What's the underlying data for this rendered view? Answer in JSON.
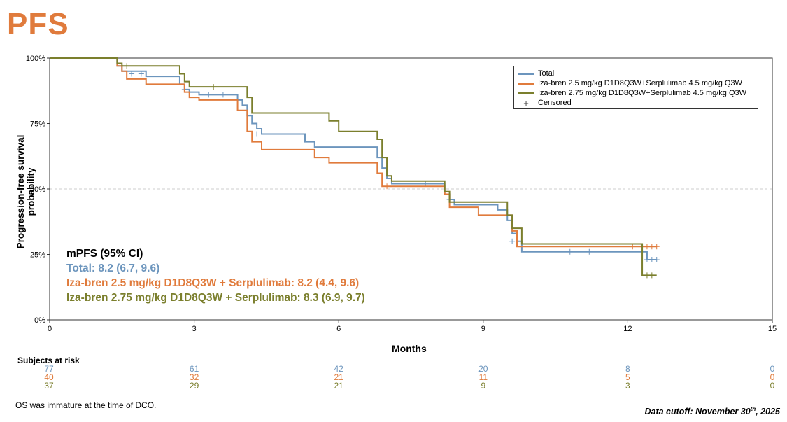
{
  "header": {
    "title": "PFS"
  },
  "chart_data": {
    "type": "line",
    "step": true,
    "xlabel": "Months",
    "ylabel": "Progression-free survival probability",
    "xlim": [
      0,
      15
    ],
    "ylim": [
      0,
      100
    ],
    "x_ticks": [
      0,
      3,
      6,
      9,
      12,
      15
    ],
    "y_ticks": [
      0,
      25,
      50,
      75,
      100
    ],
    "y_tick_labels": [
      "0%",
      "25%",
      "50%",
      "75%",
      "100%"
    ],
    "reference_line_y": 50,
    "legend_placement": "top-right",
    "legend": {
      "total": "Total",
      "dose1": "Iza-bren 2.5 mg/kg D1D8Q3W+Serplulimab 4.5 mg/kg Q3W",
      "dose2": "Iza-bren 2.75 mg/kg D1D8Q3W+Serplulimab 4.5 mg/kg Q3W",
      "censored": "Censored"
    },
    "series": [
      {
        "name": "Total",
        "color": "#6c95bd",
        "x": [
          0,
          1.4,
          1.5,
          2.0,
          2.7,
          2.8,
          2.9,
          3.1,
          3.9,
          4.0,
          4.1,
          4.2,
          4.3,
          4.4,
          5.3,
          5.5,
          6.8,
          6.9,
          7.0,
          7.1,
          8.2,
          8.3,
          8.4,
          9.3,
          9.5,
          9.6,
          9.7,
          9.8,
          12.4,
          12.6
        ],
        "y": [
          100,
          97,
          95,
          93,
          90,
          88,
          87,
          86,
          84,
          82,
          78,
          75,
          73,
          71,
          68,
          66,
          62,
          58,
          54,
          52,
          48,
          46,
          44,
          42,
          38,
          33,
          30,
          26,
          23,
          23
        ],
        "censored_x": [
          1.7,
          1.9,
          2.8,
          3.3,
          3.6,
          4.3,
          7.8,
          8.3,
          9.6,
          10.8,
          11.2,
          12.4,
          12.5,
          12.6
        ],
        "censored_y": [
          94,
          94,
          88,
          86,
          86,
          71,
          52,
          46,
          30,
          26,
          26,
          23,
          23,
          23
        ]
      },
      {
        "name": "Iza-bren 2.5 mg/kg D1D8Q3W+Serplulimab 4.5 mg/kg Q3W",
        "color": "#e07b3c",
        "x": [
          0,
          1.4,
          1.5,
          1.6,
          2.0,
          2.8,
          2.9,
          3.1,
          3.9,
          4.1,
          4.2,
          4.4,
          5.5,
          5.8,
          6.8,
          6.9,
          8.2,
          8.3,
          8.9,
          9.6,
          9.7,
          12.6
        ],
        "y": [
          100,
          97,
          95,
          92,
          90,
          87,
          85,
          84,
          80,
          72,
          68,
          65,
          62,
          60,
          56,
          51,
          48,
          43,
          40,
          34,
          28,
          28
        ],
        "censored_x": [
          7.0,
          12.1,
          12.3,
          12.4,
          12.5,
          12.6
        ],
        "censored_y": [
          51,
          28,
          28,
          28,
          28,
          28
        ]
      },
      {
        "name": "Iza-bren 2.75 mg/kg D1D8Q3W+Serplulimab 4.5 mg/kg Q3W",
        "color": "#7b7f2d",
        "x": [
          0,
          1.4,
          1.5,
          2.7,
          2.8,
          2.9,
          4.0,
          4.1,
          4.2,
          5.8,
          6.0,
          6.8,
          6.9,
          7.0,
          7.1,
          8.2,
          8.3,
          8.4,
          9.5,
          9.6,
          9.8,
          12.3,
          12.6
        ],
        "y": [
          100,
          98,
          97,
          94,
          91,
          89,
          89,
          85,
          79,
          76,
          72,
          69,
          62,
          55,
          53,
          49,
          45,
          45,
          40,
          35,
          29,
          17,
          17
        ],
        "censored_x": [
          1.6,
          3.4,
          7.5,
          12.4,
          12.5
        ],
        "censored_y": [
          97,
          89,
          53,
          17,
          17
        ]
      }
    ]
  },
  "stats": {
    "heading": "mPFS (95% CI)",
    "total": "Total: 8.2 (6.7, 9.6)",
    "dose1": "Iza-bren 2.5 mg/kg D1D8Q3W + Serplulimab: 8.2 (4.4, 9.6)",
    "dose2": "Iza-bren 2.75 mg/kg D1D8Q3W + Serplulimab: 8.3 (6.9, 9.7)"
  },
  "risk_table": {
    "title": "Subjects at risk",
    "times": [
      0,
      3,
      6,
      9,
      12,
      15
    ],
    "rows": [
      {
        "color": "#6c95bd",
        "values": [
          "77",
          "61",
          "42",
          "20",
          "8",
          "0"
        ]
      },
      {
        "color": "#e07b3c",
        "values": [
          "40",
          "32",
          "21",
          "11",
          "5",
          "0"
        ]
      },
      {
        "color": "#7b7f2d",
        "values": [
          "37",
          "29",
          "21",
          "9",
          "3",
          "0"
        ]
      }
    ]
  },
  "footer": {
    "note": "OS was immature at the time of DCO.",
    "cutoff_prefix": "Data cutoff: November 30",
    "cutoff_sup": "th",
    "cutoff_suffix": ", 2025"
  }
}
